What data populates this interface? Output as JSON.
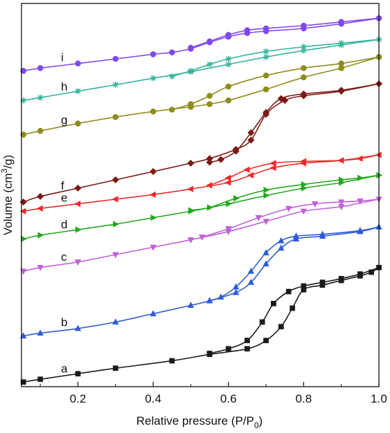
{
  "chart_data": {
    "type": "line",
    "xlabel_main": "Relative pressure (P/P",
    "xlabel_sub": "0",
    "xlabel_end": ")",
    "ylabel_main": "Volume (cm",
    "ylabel_sup": "3",
    "ylabel_end": "/g)",
    "xlim": [
      0.05,
      1.0
    ],
    "x_ticks": [
      "0.2",
      "0.4",
      "0.6",
      "0.8",
      "1.0"
    ],
    "x_tick_values": [
      0.2,
      0.4,
      0.6,
      0.8,
      1.0
    ],
    "y_tick_labels": false,
    "grid": false,
    "series": [
      {
        "name": "a",
        "color": "#1a1a1a",
        "marker": "square",
        "adsorption": [
          [
            0.055,
            0.0
          ],
          [
            0.1,
            0.03
          ],
          [
            0.2,
            0.09
          ],
          [
            0.3,
            0.15
          ],
          [
            0.45,
            0.23
          ],
          [
            0.55,
            0.3
          ],
          [
            0.65,
            0.36
          ],
          [
            0.7,
            0.45
          ],
          [
            0.74,
            0.6
          ],
          [
            0.77,
            0.8
          ],
          [
            0.8,
            1.0
          ],
          [
            0.85,
            1.05
          ],
          [
            0.9,
            1.1
          ],
          [
            0.95,
            1.15
          ],
          [
            0.98,
            1.19
          ],
          [
            1.0,
            1.24
          ]
        ],
        "desorption": [
          [
            1.0,
            1.24
          ],
          [
            0.95,
            1.17
          ],
          [
            0.9,
            1.12
          ],
          [
            0.85,
            1.08
          ],
          [
            0.8,
            1.04
          ],
          [
            0.76,
            0.98
          ],
          [
            0.72,
            0.85
          ],
          [
            0.69,
            0.65
          ],
          [
            0.65,
            0.45
          ],
          [
            0.6,
            0.36
          ],
          [
            0.55,
            0.31
          ]
        ]
      },
      {
        "name": "b",
        "color": "#2f5bd6",
        "marker": "triangle-up",
        "adsorption": [
          [
            0.055,
            0.5
          ],
          [
            0.1,
            0.53
          ],
          [
            0.2,
            0.58
          ],
          [
            0.3,
            0.65
          ],
          [
            0.4,
            0.74
          ],
          [
            0.5,
            0.83
          ],
          [
            0.55,
            0.88
          ],
          [
            0.62,
            0.97
          ],
          [
            0.66,
            1.08
          ],
          [
            0.7,
            1.28
          ],
          [
            0.74,
            1.45
          ],
          [
            0.78,
            1.55
          ],
          [
            0.85,
            1.58
          ],
          [
            0.95,
            1.63
          ],
          [
            1.0,
            1.68
          ]
        ],
        "desorption": [
          [
            1.0,
            1.68
          ],
          [
            0.95,
            1.64
          ],
          [
            0.85,
            1.6
          ],
          [
            0.78,
            1.58
          ],
          [
            0.74,
            1.53
          ],
          [
            0.7,
            1.4
          ],
          [
            0.66,
            1.2
          ],
          [
            0.62,
            1.03
          ],
          [
            0.58,
            0.92
          ],
          [
            0.55,
            0.88
          ]
        ]
      },
      {
        "name": "c",
        "color": "#c060d8",
        "marker": "triangle-down",
        "adsorption": [
          [
            0.055,
            1.2
          ],
          [
            0.1,
            1.24
          ],
          [
            0.2,
            1.3
          ],
          [
            0.3,
            1.38
          ],
          [
            0.4,
            1.46
          ],
          [
            0.5,
            1.54
          ],
          [
            0.6,
            1.63
          ],
          [
            0.7,
            1.74
          ],
          [
            0.8,
            1.85
          ],
          [
            0.9,
            1.9
          ],
          [
            1.0,
            1.98
          ]
        ],
        "desorption": [
          [
            1.0,
            1.98
          ],
          [
            0.95,
            1.96
          ],
          [
            0.9,
            1.95
          ],
          [
            0.83,
            1.93
          ],
          [
            0.76,
            1.88
          ],
          [
            0.68,
            1.78
          ],
          [
            0.6,
            1.66
          ],
          [
            0.53,
            1.57
          ]
        ]
      },
      {
        "name": "d",
        "color": "#22a81c",
        "marker": "triangle-right",
        "adsorption": [
          [
            0.055,
            1.55
          ],
          [
            0.1,
            1.59
          ],
          [
            0.2,
            1.65
          ],
          [
            0.3,
            1.71
          ],
          [
            0.4,
            1.78
          ],
          [
            0.5,
            1.85
          ],
          [
            0.6,
            1.93
          ],
          [
            0.7,
            2.02
          ],
          [
            0.8,
            2.1
          ],
          [
            0.9,
            2.16
          ],
          [
            1.0,
            2.24
          ]
        ],
        "desorption": [
          [
            1.0,
            2.24
          ],
          [
            0.95,
            2.21
          ],
          [
            0.9,
            2.19
          ],
          [
            0.8,
            2.14
          ],
          [
            0.7,
            2.08
          ],
          [
            0.62,
            1.99
          ],
          [
            0.55,
            1.89
          ],
          [
            0.5,
            1.86
          ]
        ]
      },
      {
        "name": "e",
        "color": "#ef2a2a",
        "marker": "triangle-left",
        "adsorption": [
          [
            0.055,
            1.85
          ],
          [
            0.1,
            1.88
          ],
          [
            0.2,
            1.93
          ],
          [
            0.3,
            1.98
          ],
          [
            0.4,
            2.03
          ],
          [
            0.5,
            2.09
          ],
          [
            0.6,
            2.16
          ],
          [
            0.66,
            2.24
          ],
          [
            0.72,
            2.32
          ],
          [
            0.8,
            2.37
          ],
          [
            0.9,
            2.4
          ],
          [
            1.0,
            2.46
          ]
        ],
        "desorption": [
          [
            1.0,
            2.46
          ],
          [
            0.95,
            2.42
          ],
          [
            0.9,
            2.4
          ],
          [
            0.8,
            2.39
          ],
          [
            0.72,
            2.37
          ],
          [
            0.65,
            2.3
          ],
          [
            0.6,
            2.21
          ],
          [
            0.55,
            2.13
          ]
        ]
      },
      {
        "name": "f",
        "color": "#7b1a14",
        "marker": "diamond",
        "adsorption": [
          [
            0.055,
            1.95
          ],
          [
            0.1,
            2.01
          ],
          [
            0.2,
            2.1
          ],
          [
            0.3,
            2.19
          ],
          [
            0.4,
            2.28
          ],
          [
            0.5,
            2.37
          ],
          [
            0.55,
            2.42
          ],
          [
            0.62,
            2.52
          ],
          [
            0.66,
            2.62
          ],
          [
            0.7,
            2.9
          ],
          [
            0.75,
            3.05
          ],
          [
            0.8,
            3.1
          ],
          [
            0.9,
            3.15
          ],
          [
            1.0,
            3.23
          ]
        ],
        "desorption": [
          [
            1.0,
            3.23
          ],
          [
            0.9,
            3.16
          ],
          [
            0.8,
            3.12
          ],
          [
            0.74,
            3.07
          ],
          [
            0.7,
            2.92
          ],
          [
            0.66,
            2.7
          ],
          [
            0.62,
            2.5
          ],
          [
            0.58,
            2.41
          ],
          [
            0.55,
            2.38
          ]
        ]
      },
      {
        "name": "g",
        "color": "#8f8c1a",
        "marker": "circle",
        "adsorption": [
          [
            0.055,
            2.68
          ],
          [
            0.1,
            2.72
          ],
          [
            0.2,
            2.8
          ],
          [
            0.3,
            2.87
          ],
          [
            0.4,
            2.93
          ],
          [
            0.5,
            2.98
          ],
          [
            0.55,
            3.01
          ],
          [
            0.6,
            3.05
          ],
          [
            0.7,
            3.17
          ],
          [
            0.8,
            3.3
          ],
          [
            0.9,
            3.4
          ],
          [
            1.0,
            3.52
          ]
        ],
        "desorption": [
          [
            1.0,
            3.52
          ],
          [
            0.9,
            3.45
          ],
          [
            0.8,
            3.4
          ],
          [
            0.7,
            3.32
          ],
          [
            0.6,
            3.2
          ],
          [
            0.55,
            3.1
          ],
          [
            0.5,
            3.01
          ],
          [
            0.45,
            2.95
          ]
        ]
      },
      {
        "name": "h",
        "color": "#35b39c",
        "marker": "star",
        "adsorption": [
          [
            0.055,
            3.05
          ],
          [
            0.1,
            3.08
          ],
          [
            0.2,
            3.15
          ],
          [
            0.3,
            3.22
          ],
          [
            0.4,
            3.29
          ],
          [
            0.5,
            3.36
          ],
          [
            0.6,
            3.44
          ],
          [
            0.7,
            3.52
          ],
          [
            0.8,
            3.59
          ],
          [
            0.9,
            3.65
          ],
          [
            1.0,
            3.71
          ]
        ],
        "desorption": [
          [
            1.0,
            3.71
          ],
          [
            0.9,
            3.67
          ],
          [
            0.8,
            3.63
          ],
          [
            0.7,
            3.58
          ],
          [
            0.6,
            3.5
          ],
          [
            0.55,
            3.44
          ],
          [
            0.5,
            3.37
          ],
          [
            0.45,
            3.31
          ]
        ]
      },
      {
        "name": "i",
        "color": "#8148f0",
        "marker": "circle",
        "adsorption": [
          [
            0.055,
            3.37
          ],
          [
            0.1,
            3.4
          ],
          [
            0.2,
            3.45
          ],
          [
            0.3,
            3.5
          ],
          [
            0.4,
            3.55
          ],
          [
            0.45,
            3.57
          ],
          [
            0.5,
            3.61
          ],
          [
            0.55,
            3.68
          ],
          [
            0.6,
            3.74
          ],
          [
            0.65,
            3.78
          ],
          [
            0.7,
            3.8
          ],
          [
            0.8,
            3.83
          ],
          [
            0.9,
            3.88
          ],
          [
            1.0,
            3.94
          ]
        ],
        "desorption": [
          [
            1.0,
            3.94
          ],
          [
            0.9,
            3.9
          ],
          [
            0.8,
            3.86
          ],
          [
            0.7,
            3.83
          ],
          [
            0.65,
            3.81
          ],
          [
            0.6,
            3.76
          ],
          [
            0.55,
            3.69
          ],
          [
            0.5,
            3.62
          ]
        ]
      }
    ]
  }
}
